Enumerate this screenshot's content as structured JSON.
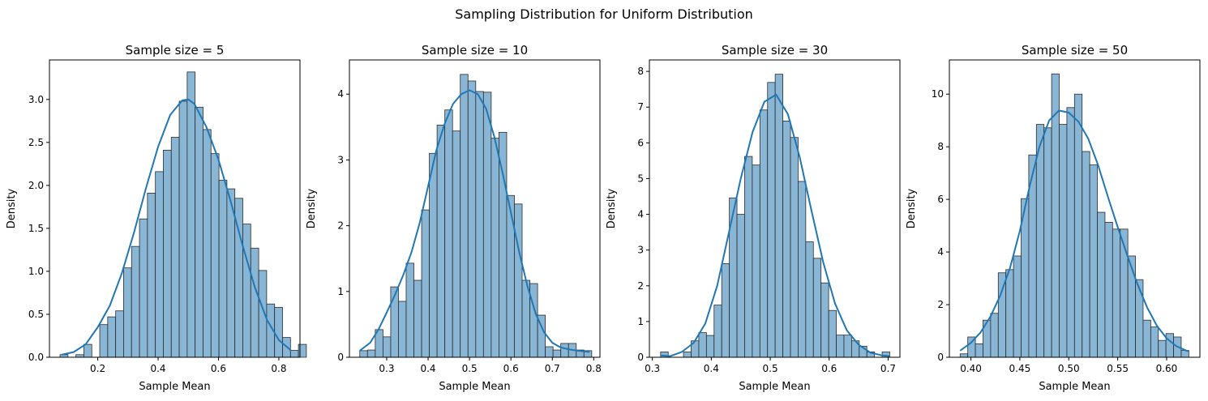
{
  "figure": {
    "suptitle": "Sampling Distribution for Uniform Distribution"
  },
  "colors": {
    "bar_fill": "#8ab6d6",
    "bar_edge": "#2b2b2b",
    "kde_line": "#1f77b4"
  },
  "chart_data": [
    {
      "type": "bar",
      "title": "Sample size = 5",
      "xlabel": "Sample Mean",
      "ylabel": "Density",
      "xlim": [
        0.04,
        0.87
      ],
      "ylim": [
        0,
        3.46
      ],
      "xticks": [
        0.2,
        0.4,
        0.6,
        0.8
      ],
      "xtick_labels": [
        "0.2",
        "0.4",
        "0.6",
        "0.8"
      ],
      "yticks": [
        0,
        0.5,
        1.0,
        1.5,
        2.0,
        2.5,
        3.0
      ],
      "ytick_labels": [
        "0.0",
        "0.5",
        "1.0",
        "1.5",
        "2.0",
        "2.5",
        "3.0"
      ],
      "bin_start": 0.075,
      "bin_width": 0.02633,
      "values": [
        0.03,
        0.0,
        0.03,
        0.15,
        0.0,
        0.38,
        0.47,
        0.54,
        1.04,
        1.29,
        1.61,
        1.91,
        2.16,
        2.41,
        2.56,
        2.98,
        3.32,
        2.91,
        2.65,
        2.37,
        2.06,
        1.96,
        1.85,
        1.55,
        1.27,
        1.01,
        0.62,
        0.58,
        0.23,
        0.08,
        0.15
      ],
      "kde": {
        "x": [
          0.08,
          0.12,
          0.16,
          0.2,
          0.24,
          0.28,
          0.32,
          0.36,
          0.4,
          0.44,
          0.48,
          0.5,
          0.52,
          0.56,
          0.6,
          0.64,
          0.68,
          0.72,
          0.76,
          0.8,
          0.84
        ],
        "y": [
          0.03,
          0.06,
          0.15,
          0.35,
          0.6,
          0.98,
          1.45,
          1.97,
          2.45,
          2.82,
          2.99,
          3.0,
          2.95,
          2.68,
          2.3,
          1.82,
          1.3,
          0.82,
          0.44,
          0.2,
          0.08
        ]
      }
    },
    {
      "type": "bar",
      "title": "Sample size = 10",
      "xlabel": "Sample Mean",
      "ylabel": "Density",
      "xlim": [
        0.21,
        0.815
      ],
      "ylim": [
        0,
        4.52
      ],
      "xticks": [
        0.3,
        0.4,
        0.5,
        0.6,
        0.7,
        0.8
      ],
      "xtick_labels": [
        "0.3",
        "0.4",
        "0.5",
        "0.6",
        "0.7",
        "0.8"
      ],
      "yticks": [
        0,
        1,
        2,
        3,
        4
      ],
      "ytick_labels": [
        "0",
        "1",
        "2",
        "3",
        "4"
      ],
      "bin_start": 0.235,
      "bin_width": 0.01867,
      "values": [
        0.1,
        0.11,
        0.42,
        0.31,
        1.07,
        0.85,
        1.43,
        1.17,
        2.24,
        3.1,
        3.53,
        3.76,
        3.44,
        4.3,
        4.2,
        4.04,
        4.03,
        3.33,
        3.42,
        2.46,
        2.33,
        1.17,
        1.12,
        0.64,
        0.16,
        0.11,
        0.21,
        0.21,
        0.11,
        0.1
      ],
      "kde": {
        "x": [
          0.235,
          0.26,
          0.28,
          0.3,
          0.32,
          0.34,
          0.36,
          0.38,
          0.4,
          0.42,
          0.44,
          0.46,
          0.48,
          0.5,
          0.52,
          0.54,
          0.56,
          0.58,
          0.6,
          0.62,
          0.64,
          0.66,
          0.68,
          0.7,
          0.72,
          0.74,
          0.76,
          0.79
        ],
        "y": [
          0.1,
          0.22,
          0.42,
          0.68,
          0.95,
          1.25,
          1.6,
          2.05,
          2.6,
          3.15,
          3.55,
          3.85,
          4.0,
          4.06,
          4.0,
          3.78,
          3.35,
          2.8,
          2.2,
          1.6,
          1.08,
          0.66,
          0.38,
          0.22,
          0.15,
          0.12,
          0.1,
          0.08
        ]
      }
    },
    {
      "type": "bar",
      "title": "Sample size = 30",
      "xlabel": "Sample Mean",
      "ylabel": "Density",
      "xlim": [
        0.295,
        0.72
      ],
      "ylim": [
        0,
        8.32
      ],
      "xticks": [
        0.3,
        0.4,
        0.5,
        0.6,
        0.7
      ],
      "xtick_labels": [
        "0.3",
        "0.4",
        "0.5",
        "0.6",
        "0.7"
      ],
      "yticks": [
        0,
        1,
        2,
        3,
        4,
        5,
        6,
        7,
        8
      ],
      "ytick_labels": [
        "0",
        "1",
        "2",
        "3",
        "4",
        "5",
        "6",
        "7",
        "8"
      ],
      "bin_start": 0.314,
      "bin_width": 0.01296,
      "values": [
        0.15,
        0.0,
        0.0,
        0.15,
        0.46,
        0.69,
        0.61,
        1.46,
        2.62,
        4.46,
        4.0,
        5.62,
        5.38,
        6.92,
        7.69,
        7.92,
        6.61,
        6.15,
        4.92,
        3.23,
        2.77,
        2.08,
        1.31,
        0.62,
        0.62,
        0.46,
        0.31,
        0.15,
        0.0,
        0.15
      ],
      "kde": {
        "x": [
          0.314,
          0.33,
          0.35,
          0.37,
          0.39,
          0.41,
          0.43,
          0.45,
          0.47,
          0.49,
          0.51,
          0.53,
          0.55,
          0.57,
          0.59,
          0.61,
          0.63,
          0.65,
          0.67,
          0.69,
          0.703
        ],
        "y": [
          0.05,
          0.03,
          0.15,
          0.4,
          0.95,
          2.0,
          3.5,
          5.0,
          6.3,
          7.15,
          7.35,
          6.8,
          5.6,
          4.1,
          2.65,
          1.5,
          0.75,
          0.35,
          0.13,
          0.05,
          0.03
        ]
      }
    },
    {
      "type": "bar",
      "title": "Sample size = 50",
      "xlabel": "Sample Mean",
      "ylabel": "Density",
      "xlim": [
        0.378,
        0.634
      ],
      "ylim": [
        0,
        11.3
      ],
      "xticks": [
        0.4,
        0.45,
        0.5,
        0.55,
        0.6
      ],
      "xtick_labels": [
        "0.40",
        "0.45",
        "0.50",
        "0.55",
        "0.60"
      ],
      "yticks": [
        0,
        2,
        4,
        6,
        8,
        10
      ],
      "ytick_labels": [
        "0",
        "2",
        "4",
        "6",
        "8",
        "10"
      ],
      "bin_start": 0.389,
      "bin_width": 0.00779,
      "values": [
        0.13,
        0.77,
        0.51,
        1.41,
        1.67,
        3.21,
        3.33,
        3.85,
        6.03,
        7.69,
        8.85,
        8.72,
        10.77,
        8.85,
        9.49,
        10.0,
        7.82,
        7.31,
        5.51,
        5.13,
        4.87,
        4.87,
        3.85,
        2.95,
        1.41,
        1.15,
        0.64,
        0.9,
        0.77,
        0.26
      ],
      "kde": {
        "x": [
          0.389,
          0.4,
          0.41,
          0.42,
          0.43,
          0.44,
          0.45,
          0.46,
          0.47,
          0.48,
          0.49,
          0.5,
          0.51,
          0.52,
          0.53,
          0.54,
          0.55,
          0.56,
          0.57,
          0.58,
          0.59,
          0.6,
          0.61,
          0.622
        ],
        "y": [
          0.25,
          0.55,
          0.95,
          1.55,
          2.35,
          3.4,
          4.8,
          6.5,
          8.0,
          9.0,
          9.38,
          9.3,
          8.95,
          8.3,
          7.3,
          6.1,
          4.95,
          3.85,
          2.8,
          1.9,
          1.2,
          0.72,
          0.42,
          0.22
        ]
      }
    }
  ]
}
